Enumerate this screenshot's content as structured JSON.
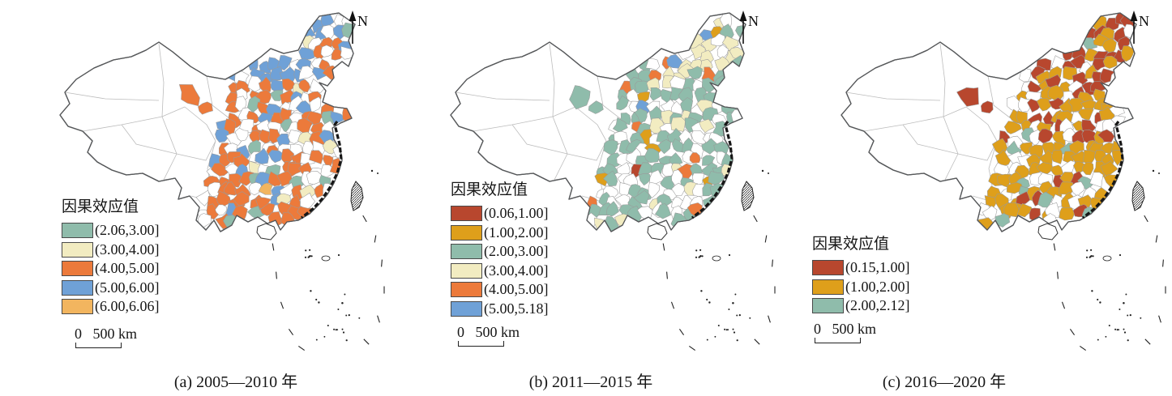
{
  "figure": {
    "type": "choropleth-map-triptych",
    "region": "China (prefecture level)",
    "panels": [
      {
        "id": "a",
        "caption": "(a) 2005—2010 年",
        "north_label": "N",
        "legend": {
          "title": "因果效应值",
          "items": [
            {
              "range": "(2.06,3.00]",
              "color": "#8FBCAB"
            },
            {
              "range": "(3.00,4.00]",
              "color": "#F2ECC1"
            },
            {
              "range": "(4.00,5.00]",
              "color": "#EC7A3B"
            },
            {
              "range": "(5.00,6.00]",
              "color": "#6FA1D7"
            },
            {
              "range": "(6.00,6.06]",
              "color": "#F2B55F"
            }
          ]
        },
        "scale_label": "0   500 km",
        "map_pattern": {
          "seed": 11,
          "weights": [
            [
              "#ffffff",
              0.34
            ],
            [
              "#EC7A3B",
              0.42
            ],
            [
              "#6FA1D7",
              0.15
            ],
            [
              "#F2ECC1",
              0.05
            ],
            [
              "#8FBCAB",
              0.03
            ],
            [
              "#F2B55F",
              0.01
            ]
          ],
          "north": {
            "color": "#6FA1D7",
            "fraction": 0.42
          },
          "outlier_color": "#EC7A3B"
        }
      },
      {
        "id": "b",
        "caption": "(b) 2011—2015 年",
        "north_label": "N",
        "legend": {
          "title": "因果效应值",
          "items": [
            {
              "range": "(0.06,1.00]",
              "color": "#B8472E"
            },
            {
              "range": "(1.00,2.00]",
              "color": "#DE9F1B"
            },
            {
              "range": "(2.00,3.00]",
              "color": "#8FBCAB"
            },
            {
              "range": "(3.00,4.00]",
              "color": "#F2ECC1"
            },
            {
              "range": "(4.00,5.00]",
              "color": "#EC7A3B"
            },
            {
              "range": "(5.00,5.18]",
              "color": "#6FA1D7"
            }
          ]
        },
        "scale_label": "0   500 km",
        "map_pattern": {
          "seed": 22,
          "weights": [
            [
              "#ffffff",
              0.34
            ],
            [
              "#8FBCAB",
              0.44
            ],
            [
              "#F2ECC1",
              0.09
            ],
            [
              "#DE9F1B",
              0.06
            ],
            [
              "#EC7A3B",
              0.05
            ],
            [
              "#B8472E",
              0.01
            ],
            [
              "#6FA1D7",
              0.01
            ]
          ],
          "north": {
            "color": "#F2ECC1",
            "fraction": 0.38
          },
          "outlier_color": "#8FBCAB"
        }
      },
      {
        "id": "c",
        "caption": "(c) 2016—2020 年",
        "north_label": "N",
        "legend": {
          "title": "因果效应值",
          "items": [
            {
              "range": "(0.15,1.00]",
              "color": "#B8472E"
            },
            {
              "range": "(1.00,2.00]",
              "color": "#DE9F1B"
            },
            {
              "range": "(2.00,2.12]",
              "color": "#8FBCAB"
            }
          ]
        },
        "scale_label": "0   500 km",
        "map_pattern": {
          "seed": 33,
          "weights": [
            [
              "#ffffff",
              0.29
            ],
            [
              "#DE9F1B",
              0.49
            ],
            [
              "#B8472E",
              0.17
            ],
            [
              "#8FBCAB",
              0.05
            ]
          ],
          "north": {
            "color": "#B8472E",
            "fraction": 0.62
          },
          "outlier_color": "#B8472E"
        }
      }
    ]
  },
  "chart_data": [
    {
      "type": "choropleth",
      "title": "(a) 2005—2010 年",
      "variable": "因果效应值",
      "value_range": [
        2.06,
        6.06
      ],
      "legend_position": "bottom-left",
      "bins": [
        {
          "range": "(2.06,3.00]",
          "color": "#8FBCAB"
        },
        {
          "range": "(3.00,4.00]",
          "color": "#F2ECC1"
        },
        {
          "range": "(4.00,5.00]",
          "color": "#EC7A3B"
        },
        {
          "range": "(5.00,6.00]",
          "color": "#6FA1D7"
        },
        {
          "range": "(6.00,6.06]",
          "color": "#F2B55F"
        }
      ],
      "dominant_pattern": "orange (4,5] across east/central/south China; blue (5,6] clusters in northeast and central regions; far west mostly no data"
    },
    {
      "type": "choropleth",
      "title": "(b) 2011—2015 年",
      "variable": "因果效应值",
      "value_range": [
        0.06,
        5.18
      ],
      "legend_position": "bottom-left",
      "bins": [
        {
          "range": "(0.06,1.00]",
          "color": "#B8472E"
        },
        {
          "range": "(1.00,2.00]",
          "color": "#DE9F1B"
        },
        {
          "range": "(2.00,3.00]",
          "color": "#8FBCAB"
        },
        {
          "range": "(3.00,4.00]",
          "color": "#F2ECC1"
        },
        {
          "range": "(4.00,5.00]",
          "color": "#EC7A3B"
        },
        {
          "range": "(5.00,5.18]",
          "color": "#6FA1D7"
        }
      ],
      "dominant_pattern": "teal (2,3] dominant in east/central China; pale yellow (3,4] in the far northeast; scattered orange and amber; far west mostly no data"
    },
    {
      "type": "choropleth",
      "title": "(c) 2016—2020 年",
      "variable": "因果效应值",
      "value_range": [
        0.15,
        2.12
      ],
      "legend_position": "bottom-left",
      "bins": [
        {
          "range": "(0.15,1.00]",
          "color": "#B8472E"
        },
        {
          "range": "(1.00,2.00]",
          "color": "#DE9F1B"
        },
        {
          "range": "(2.00,2.12]",
          "color": "#8FBCAB"
        }
      ],
      "dominant_pattern": "dark red (0.15,1] over northeast and north; amber (1,2] over central/east/south; few teal cells near south coast; far west mostly no data"
    }
  ]
}
